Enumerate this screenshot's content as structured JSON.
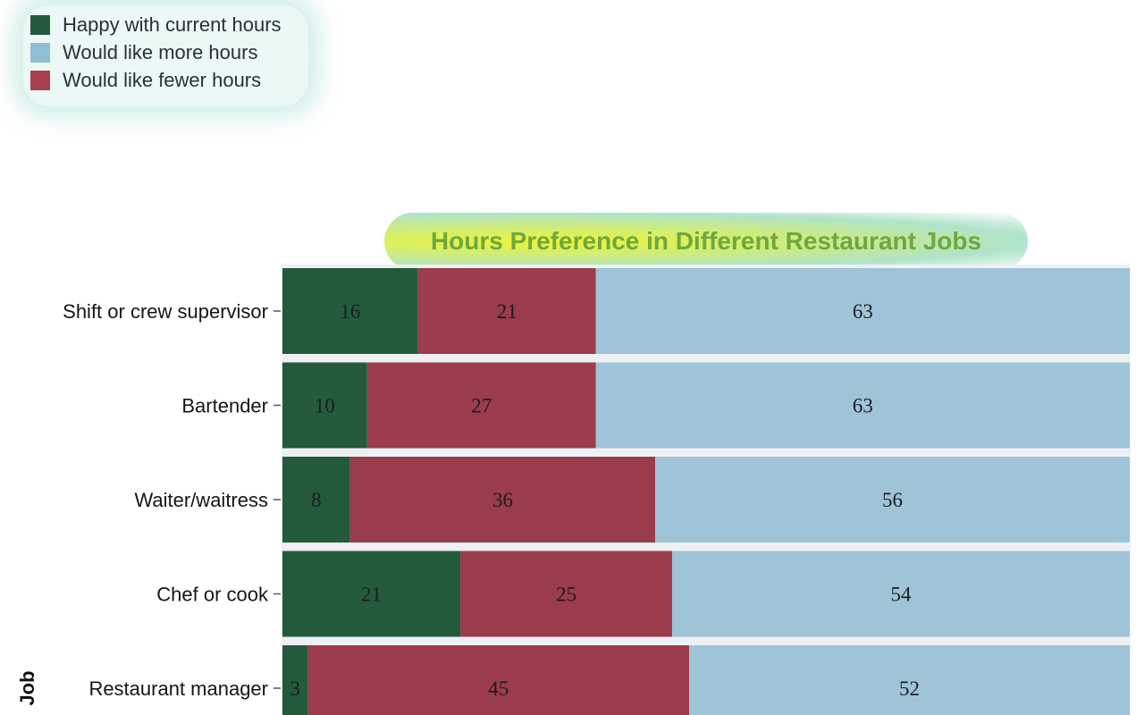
{
  "chart_data": {
    "type": "bar",
    "orientation": "horizontal",
    "stacked": true,
    "title": "Hours Preference in Different Restaurant Jobs",
    "ylabel": "Job",
    "categories": [
      "Shift or crew supervisor",
      "Bartender",
      "Waiter/waitress",
      "Chef or cook",
      "Restaurant manager"
    ],
    "series": [
      {
        "name": "Happy with current hours",
        "color": "#245a3c",
        "values": [
          16,
          10,
          8,
          21,
          3
        ]
      },
      {
        "name": "Would like fewer hours",
        "color": "#9a3c4b",
        "values": [
          21,
          27,
          36,
          25,
          45
        ]
      },
      {
        "name": "Would like more hours",
        "color": "#9fc4d8",
        "values": [
          63,
          63,
          56,
          54,
          52
        ]
      }
    ],
    "legend": {
      "position": "top-left",
      "entries": [
        {
          "label": "Happy with current hours",
          "color": "#245a3c"
        },
        {
          "label": "Would like more hours",
          "color": "#9fc4d8"
        },
        {
          "label": "Would like fewer hours",
          "color": "#9a3c4b"
        }
      ]
    },
    "xlim": [
      0,
      100
    ]
  }
}
